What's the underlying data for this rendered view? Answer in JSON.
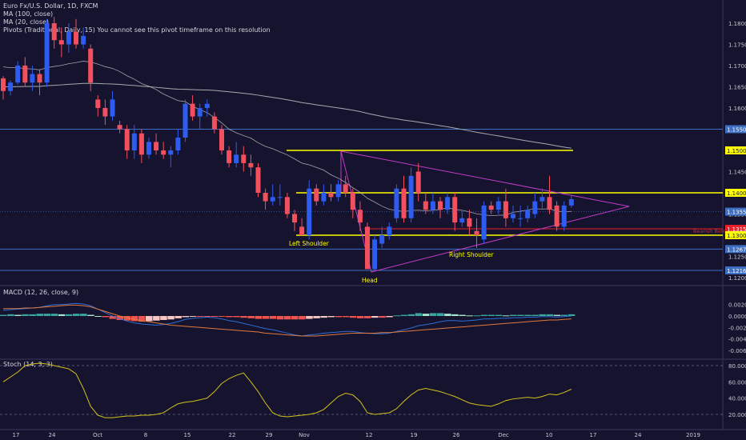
{
  "legend": {
    "line1": "Euro Fx/U.S. Dollar, 1D, FXCM",
    "line2": "MA (100, close)",
    "line3": "MA (20, close)",
    "line4": "Pivots (Traditional, Daily, 15)  You cannot see this pivot timeframe on this resolution",
    "macd": "MACD (12, 26, close, 9)",
    "stoch": "Stoch (14, 3, 3)"
  },
  "colors": {
    "background": "#15132d",
    "bull": "#2f5cf0",
    "bear": "#f2505f",
    "yellow": "#ffff00",
    "magenta": "#c03cc8",
    "blue_line": "#3e6fc2",
    "red_line": "#e8202a",
    "ma100": "#a9a9ad",
    "ma20": "#c8c8c8",
    "axis_text": "#c8c8d4",
    "hist_pos": "#3aa6a0",
    "hist_pos_weak": "#a8e6cf",
    "hist_neg": "#ef5350",
    "hist_neg_weak": "#f8c5c5",
    "macd_line": "#2d6fd6",
    "signal_line": "#e27a3f",
    "stoch_line": "#d4c21c"
  },
  "chart_data": [
    {
      "type": "candlestick",
      "title": "Euro Fx/U.S. Dollar, 1D, FXCM",
      "ylim": [
        1.118,
        1.184
      ],
      "y_ticks": [
        "1.18000",
        "1.17500",
        "1.17000",
        "1.16500",
        "1.16000",
        "1.15500",
        "1.15000",
        "1.14500",
        "1.14000",
        "1.13500",
        "1.13000",
        "1.12500",
        "1.12000"
      ],
      "x_ticks": [
        "17",
        "24",
        "Oct",
        "8",
        "15",
        "22",
        "29",
        "Nov",
        "12",
        "19",
        "26",
        "Dec",
        "10",
        "17",
        "24",
        "2019"
      ],
      "last_price_label": "1.13555",
      "candles": [
        [
          1.167,
          1.164,
          1.1675,
          1.162
        ],
        [
          1.164,
          1.166,
          1.1665,
          1.163
        ],
        [
          1.166,
          1.17,
          1.171,
          1.1655
        ],
        [
          1.17,
          1.166,
          1.172,
          1.165
        ],
        [
          1.166,
          1.168,
          1.17,
          1.164
        ],
        [
          1.168,
          1.166,
          1.169,
          1.163
        ],
        [
          1.166,
          1.18,
          1.181,
          1.165
        ],
        [
          1.18,
          1.176,
          1.1815,
          1.174
        ],
        [
          1.176,
          1.175,
          1.179,
          1.172
        ],
        [
          1.175,
          1.178,
          1.18,
          1.173
        ],
        [
          1.178,
          1.175,
          1.181,
          1.174
        ],
        [
          1.175,
          1.177,
          1.179,
          1.174
        ],
        [
          1.174,
          1.166,
          1.175,
          1.164
        ],
        [
          1.162,
          1.16,
          1.163,
          1.158
        ],
        [
          1.16,
          1.158,
          1.162,
          1.156
        ],
        [
          1.158,
          1.162,
          1.164,
          1.157
        ],
        [
          1.156,
          1.155,
          1.157,
          1.154
        ],
        [
          1.155,
          1.15,
          1.156,
          1.148
        ],
        [
          1.15,
          1.154,
          1.156,
          1.148
        ],
        [
          1.154,
          1.149,
          1.155,
          1.147
        ],
        [
          1.149,
          1.152,
          1.153,
          1.148
        ],
        [
          1.152,
          1.15,
          1.154,
          1.149
        ],
        [
          1.15,
          1.149,
          1.152,
          1.148
        ],
        [
          1.149,
          1.15,
          1.151,
          1.146
        ],
        [
          1.15,
          1.153,
          1.155,
          1.149
        ],
        [
          1.153,
          1.161,
          1.162,
          1.152
        ],
        [
          1.161,
          1.158,
          1.163,
          1.157
        ],
        [
          1.158,
          1.16,
          1.161,
          1.155
        ],
        [
          1.16,
          1.161,
          1.162,
          1.158
        ],
        [
          1.158,
          1.155,
          1.159,
          1.154
        ],
        [
          1.155,
          1.15,
          1.156,
          1.149
        ],
        [
          1.15,
          1.147,
          1.151,
          1.146
        ],
        [
          1.147,
          1.149,
          1.152,
          1.146
        ],
        [
          1.149,
          1.147,
          1.151,
          1.145
        ],
        [
          1.147,
          1.146,
          1.149,
          1.144
        ],
        [
          1.146,
          1.14,
          1.147,
          1.139
        ],
        [
          1.14,
          1.138,
          1.141,
          1.136
        ],
        [
          1.138,
          1.139,
          1.142,
          1.137
        ],
        [
          1.139,
          1.139,
          1.142,
          1.137
        ],
        [
          1.139,
          1.135,
          1.14,
          1.134
        ],
        [
          1.135,
          1.133,
          1.136,
          1.131
        ],
        [
          1.132,
          1.13,
          1.134,
          1.13
        ],
        [
          1.13,
          1.141,
          1.143,
          1.129
        ],
        [
          1.141,
          1.138,
          1.142,
          1.137
        ],
        [
          1.138,
          1.14,
          1.142,
          1.137
        ],
        [
          1.14,
          1.139,
          1.142,
          1.138
        ],
        [
          1.139,
          1.142,
          1.143,
          1.138
        ],
        [
          1.142,
          1.14,
          1.144,
          1.139
        ],
        [
          1.14,
          1.136,
          1.141,
          1.134
        ],
        [
          1.136,
          1.133,
          1.138,
          1.131
        ],
        [
          1.132,
          1.122,
          1.133,
          1.122
        ],
        [
          1.122,
          1.129,
          1.13,
          1.1217
        ],
        [
          1.128,
          1.13,
          1.132,
          1.127
        ],
        [
          1.13,
          1.132,
          1.133,
          1.129
        ],
        [
          1.134,
          1.141,
          1.142,
          1.133
        ],
        [
          1.141,
          1.134,
          1.144,
          1.133
        ],
        [
          1.134,
          1.144,
          1.146,
          1.133
        ],
        [
          1.145,
          1.14,
          1.147,
          1.138
        ],
        [
          1.138,
          1.136,
          1.14,
          1.135
        ],
        [
          1.136,
          1.138,
          1.14,
          1.135
        ],
        [
          1.138,
          1.136,
          1.139,
          1.134
        ],
        [
          1.136,
          1.139,
          1.14,
          1.135
        ],
        [
          1.139,
          1.133,
          1.14,
          1.131
        ],
        [
          1.133,
          1.134,
          1.136,
          1.132
        ],
        [
          1.134,
          1.132,
          1.136,
          1.13
        ],
        [
          1.131,
          1.13,
          1.134,
          1.127
        ],
        [
          1.129,
          1.137,
          1.138,
          1.128
        ],
        [
          1.137,
          1.136,
          1.138,
          1.135
        ],
        [
          1.136,
          1.138,
          1.139,
          1.135
        ],
        [
          1.138,
          1.134,
          1.141,
          1.132
        ],
        [
          1.134,
          1.135,
          1.137,
          1.133
        ],
        [
          1.134,
          1.134,
          1.137,
          1.132
        ],
        [
          1.134,
          1.136,
          1.137,
          1.133
        ],
        [
          1.135,
          1.138,
          1.14,
          1.134
        ],
        [
          1.138,
          1.139,
          1.141,
          1.136
        ],
        [
          1.139,
          1.136,
          1.144,
          1.135
        ],
        [
          1.137,
          1.132,
          1.138,
          1.131
        ],
        [
          1.132,
          1.137,
          1.138,
          1.131
        ],
        [
          1.137,
          1.1385,
          1.1395,
          1.1365
        ]
      ],
      "horizontal_levels": [
        {
          "value": 1.155,
          "label": "1.15500",
          "color": "blue"
        },
        {
          "value": 1.15,
          "label": "1.15000",
          "color": "yellow"
        },
        {
          "value": 1.14,
          "label": "1.14000",
          "color": "yellow"
        },
        {
          "value": 1.1315,
          "label": "1.13150",
          "color": "red",
          "note": "Bearish Below"
        },
        {
          "value": 1.13,
          "label": "1.13000",
          "color": "yellow"
        },
        {
          "value": 1.12673,
          "label": "1.12673",
          "color": "blue"
        },
        {
          "value": 1.12169,
          "label": "1.12169",
          "color": "blue"
        }
      ],
      "annotations": [
        {
          "text": "Left Shoulder"
        },
        {
          "text": "Head"
        },
        {
          "text": "Right Shoulder"
        }
      ],
      "series": [
        {
          "name": "MA (100, close)"
        },
        {
          "name": "MA (20, close)"
        }
      ]
    },
    {
      "type": "bar",
      "title": "MACD (12, 26, close, 9)",
      "ylim": [
        -0.0072,
        0.0034
      ],
      "y_ticks": [
        "0.0020",
        "0.0000",
        "-0.0020",
        "-0.0040",
        "-0.0060"
      ],
      "histogram": [
        0.0002,
        0.0003,
        0.0002,
        0.0003,
        0.0003,
        0.0004,
        0.0004,
        0.0004,
        0.0003,
        0.0003,
        0.0004,
        0.0004,
        0.0002,
        0.0,
        -0.0002,
        -0.0005,
        -0.0007,
        -0.0008,
        -0.0009,
        -0.001,
        -0.0009,
        -0.0008,
        -0.0007,
        -0.0006,
        -0.0004,
        -0.0002,
        -0.0001,
        -0.0001,
        -0.0001,
        -0.0001,
        -0.0001,
        -0.0002,
        -0.0002,
        -0.0003,
        -0.0004,
        -0.0005,
        -0.0005,
        -0.0005,
        -0.0006,
        -0.0006,
        -0.0006,
        -0.0006,
        -0.0005,
        -0.0004,
        -0.0003,
        -0.0002,
        -0.0002,
        -0.0002,
        -0.0003,
        -0.0004,
        -0.0004,
        -0.0003,
        -0.0003,
        -0.0002,
        0.0001,
        0.0002,
        0.0003,
        0.0005,
        0.0004,
        0.0005,
        0.0005,
        0.0004,
        0.0003,
        0.0002,
        0.0001,
        0.0001,
        0.0002,
        0.0002,
        0.0002,
        0.0001,
        0.0002,
        0.0002,
        0.0002,
        0.0002,
        0.0003,
        0.0003,
        0.0002,
        0.0002,
        0.0003
      ],
      "macd": [
        0.001,
        0.0011,
        0.0012,
        0.0013,
        0.0014,
        0.0015,
        0.0018,
        0.002,
        0.002,
        0.0021,
        0.0022,
        0.0021,
        0.0018,
        0.0012,
        0.0006,
        0.0,
        -0.0005,
        -0.0009,
        -0.0012,
        -0.0014,
        -0.0015,
        -0.0016,
        -0.0015,
        -0.0013,
        -0.001,
        -0.0006,
        -0.0004,
        -0.0003,
        -0.0002,
        -0.0003,
        -0.0005,
        -0.0008,
        -0.001,
        -0.0013,
        -0.0016,
        -0.0019,
        -0.0022,
        -0.0024,
        -0.0027,
        -0.003,
        -0.0033,
        -0.0035,
        -0.0033,
        -0.0032,
        -0.003,
        -0.0029,
        -0.0028,
        -0.0027,
        -0.0027,
        -0.0029,
        -0.003,
        -0.0031,
        -0.0031,
        -0.003,
        -0.0027,
        -0.0024,
        -0.0021,
        -0.0017,
        -0.0015,
        -0.0013,
        -0.001,
        -0.0008,
        -0.0008,
        -0.0009,
        -0.0008,
        -0.0007,
        -0.0005,
        -0.0005,
        -0.0004,
        -0.0004,
        -0.0003,
        -0.0003,
        -0.0002,
        -0.0002,
        -0.0001,
        -0.0001,
        -0.0002,
        -0.0001,
        0.0
      ],
      "signal": [
        0.0013,
        0.0013,
        0.0013,
        0.0014,
        0.0014,
        0.0015,
        0.0016,
        0.0017,
        0.0018,
        0.0019,
        0.0019,
        0.0018,
        0.0016,
        0.0012,
        0.0008,
        0.0004,
        0.0,
        -0.0003,
        -0.0006,
        -0.0008,
        -0.001,
        -0.0012,
        -0.0014,
        -0.0016,
        -0.0017,
        -0.0018,
        -0.0019,
        -0.002,
        -0.0021,
        -0.0022,
        -0.0023,
        -0.0024,
        -0.0025,
        -0.0026,
        -0.0027,
        -0.0028,
        -0.003,
        -0.0031,
        -0.0032,
        -0.0033,
        -0.0034,
        -0.0035,
        -0.0035,
        -0.0035,
        -0.0034,
        -0.0033,
        -0.0032,
        -0.0031,
        -0.003,
        -0.003,
        -0.003,
        -0.003,
        -0.0029,
        -0.0029,
        -0.0028,
        -0.0027,
        -0.0026,
        -0.0025,
        -0.0024,
        -0.0023,
        -0.0022,
        -0.0021,
        -0.002,
        -0.0019,
        -0.0018,
        -0.0017,
        -0.0016,
        -0.0015,
        -0.0014,
        -0.0013,
        -0.0012,
        -0.0011,
        -0.001,
        -0.0009,
        -0.0008,
        -0.0007,
        -0.0007,
        -0.0006,
        -0.0005
      ]
    },
    {
      "type": "line",
      "title": "Stoch (14, 3, 3)",
      "ylim": [
        10,
        90
      ],
      "y_ticks": [
        "80.0000",
        "60.0000",
        "40.0000",
        "20.0000"
      ],
      "reference_lines": [
        80,
        20
      ],
      "series": [
        {
          "values": [
            60,
            66,
            72,
            80,
            82,
            83,
            82,
            80,
            78,
            76,
            70,
            52,
            30,
            19,
            16,
            16,
            17,
            18,
            18,
            19,
            19,
            20,
            22,
            28,
            33,
            35,
            36,
            38,
            40,
            48,
            58,
            64,
            68,
            71,
            60,
            48,
            34,
            22,
            18,
            17,
            18,
            19,
            20,
            22,
            26,
            34,
            42,
            46,
            44,
            36,
            22,
            20,
            21,
            22,
            27,
            36,
            44,
            50,
            52,
            50,
            48,
            45,
            42,
            38,
            34,
            32,
            31,
            30,
            33,
            37,
            39,
            40,
            41,
            40,
            42,
            45,
            44,
            47,
            51
          ]
        }
      ]
    }
  ]
}
